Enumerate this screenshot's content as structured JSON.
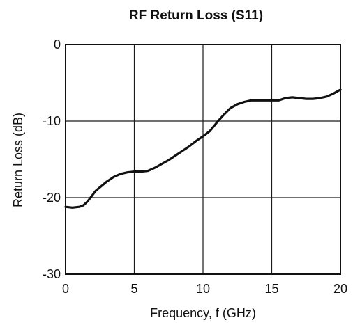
{
  "chart_data": {
    "type": "line",
    "title": "RF Return Loss (S11)",
    "xlabel": "Frequency, f (GHz)",
    "ylabel": "Return Loss (dB)",
    "xlim": [
      0,
      20
    ],
    "ylim": [
      -30,
      0
    ],
    "xticks": [
      0,
      5,
      10,
      15,
      20
    ],
    "yticks": [
      0,
      -10,
      -20,
      -30
    ],
    "xtick_labels": [
      "0",
      "5",
      "10",
      "15",
      "20"
    ],
    "ytick_labels": [
      "0",
      "-10",
      "-20",
      "-30"
    ],
    "grid": true,
    "series": [
      {
        "x": [
          0,
          0.5,
          1.0,
          1.3,
          1.6,
          1.9,
          2.2,
          2.6,
          3.0,
          3.5,
          4.0,
          4.5,
          5.0,
          5.5,
          6.0,
          6.5,
          7.0,
          7.5,
          8.0,
          8.5,
          9.0,
          9.5,
          10.0,
          10.5,
          11.0,
          11.5,
          12.0,
          12.5,
          13.0,
          13.5,
          14.0,
          14.5,
          15.0,
          15.5,
          16.0,
          16.5,
          17.0,
          17.5,
          18.0,
          18.5,
          19.0,
          19.5,
          20.0
        ],
        "y": [
          -21.2,
          -21.3,
          -21.2,
          -21.0,
          -20.5,
          -19.8,
          -19.1,
          -18.5,
          -17.9,
          -17.3,
          -16.9,
          -16.7,
          -16.6,
          -16.6,
          -16.5,
          -16.1,
          -15.6,
          -15.1,
          -14.5,
          -13.9,
          -13.3,
          -12.6,
          -12.0,
          -11.3,
          -10.2,
          -9.2,
          -8.3,
          -7.8,
          -7.5,
          -7.3,
          -7.3,
          -7.3,
          -7.3,
          -7.3,
          -7.0,
          -6.9,
          -7.0,
          -7.1,
          -7.1,
          -7.0,
          -6.8,
          -6.4,
          -5.9
        ]
      }
    ]
  }
}
